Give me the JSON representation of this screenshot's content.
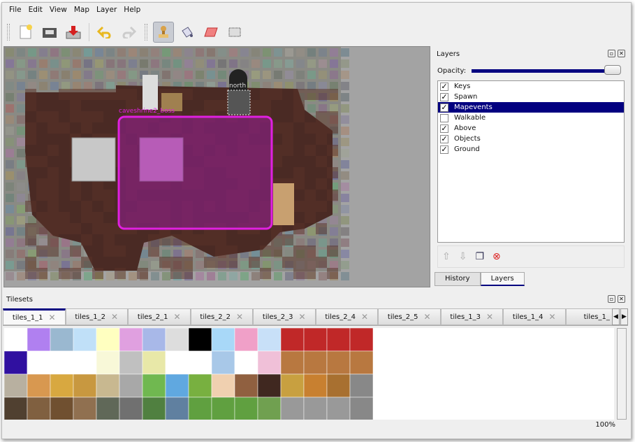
{
  "menu": [
    "File",
    "Edit",
    "View",
    "Map",
    "Layer",
    "Help"
  ],
  "toolbar": {
    "icons": [
      "new-file-icon",
      "open-folder-icon",
      "save-icon",
      "undo-icon",
      "redo-icon",
      "stamp-brush-icon",
      "bucket-fill-icon",
      "eraser-icon",
      "rect-select-icon"
    ],
    "active": "stamp-brush-icon"
  },
  "map": {
    "labels": {
      "boss": "caveshrine2_boss",
      "north": "north"
    },
    "colors": {
      "rock": "#8a8a84",
      "floor": "#4a2a24",
      "selection": "#e020e0"
    }
  },
  "layers_dock": {
    "title": "Layers",
    "opacity_label": "Opacity:",
    "opacity": 1.0,
    "layers": [
      {
        "name": "Keys",
        "visible": true
      },
      {
        "name": "Spawn",
        "visible": true
      },
      {
        "name": "Mapevents",
        "visible": true,
        "selected": true
      },
      {
        "name": "Walkable",
        "visible": false
      },
      {
        "name": "Above",
        "visible": true
      },
      {
        "name": "Objects",
        "visible": true
      },
      {
        "name": "Ground",
        "visible": true
      }
    ],
    "tabs": [
      "History",
      "Layers"
    ],
    "active_tab": "Layers"
  },
  "tilesets": {
    "title": "Tilesets",
    "tabs": [
      "tiles_1_1",
      "tiles_1_2",
      "tiles_2_1",
      "tiles_2_2",
      "tiles_2_3",
      "tiles_2_4",
      "tiles_2_5",
      "tiles_1_3",
      "tiles_1_4",
      "tiles_1_"
    ]
  },
  "status": {
    "zoom": "100%"
  }
}
